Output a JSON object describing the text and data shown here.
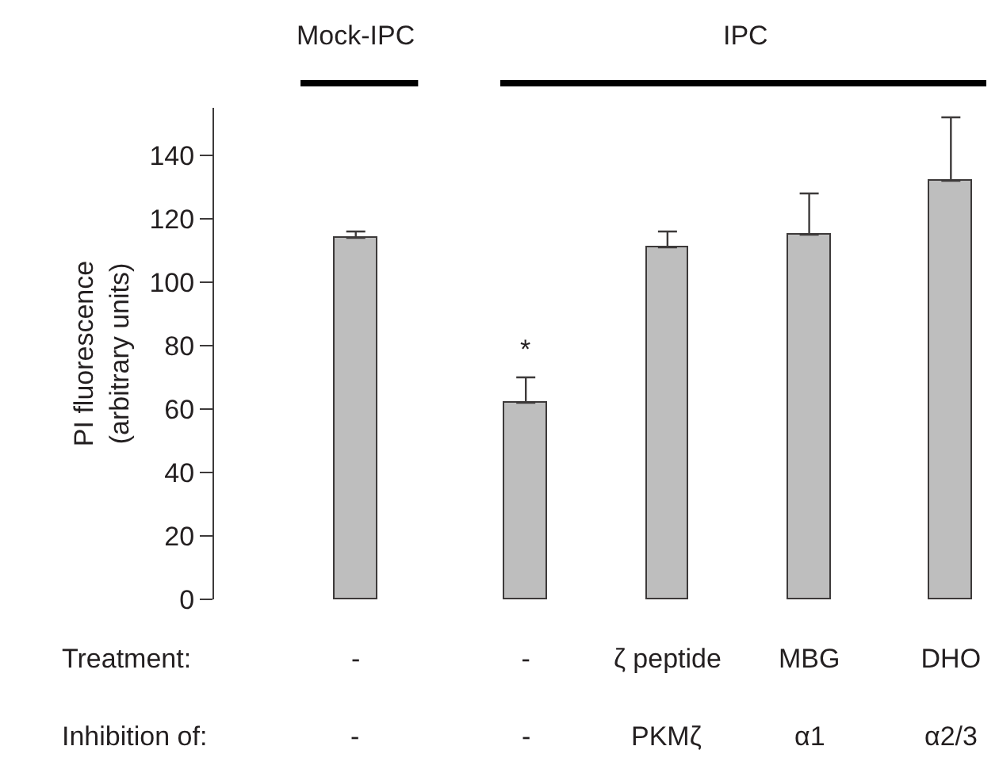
{
  "chart_data": {
    "type": "bar",
    "ylabel": "PI fluorescence\n(arbitrary units)",
    "categories": [
      "-",
      "-",
      "ζ peptide",
      "MBG",
      "DHO"
    ],
    "values": [
      114,
      62,
      111,
      115,
      132
    ],
    "errors": [
      [
        114,
        116
      ],
      [
        62,
        70
      ],
      [
        111,
        116
      ],
      [
        115,
        128
      ],
      [
        132,
        152
      ]
    ],
    "color": "#bebebe",
    "ylim": [
      0,
      155
    ],
    "yticks": [
      0,
      20,
      40,
      60,
      80,
      100,
      120,
      140
    ],
    "annotations": [
      "Mock-IPC",
      "IPC",
      "*",
      "Treatment:",
      "Inhibition of:",
      "-",
      "-",
      "PKMζ",
      "α1",
      "α2/3"
    ]
  }
}
